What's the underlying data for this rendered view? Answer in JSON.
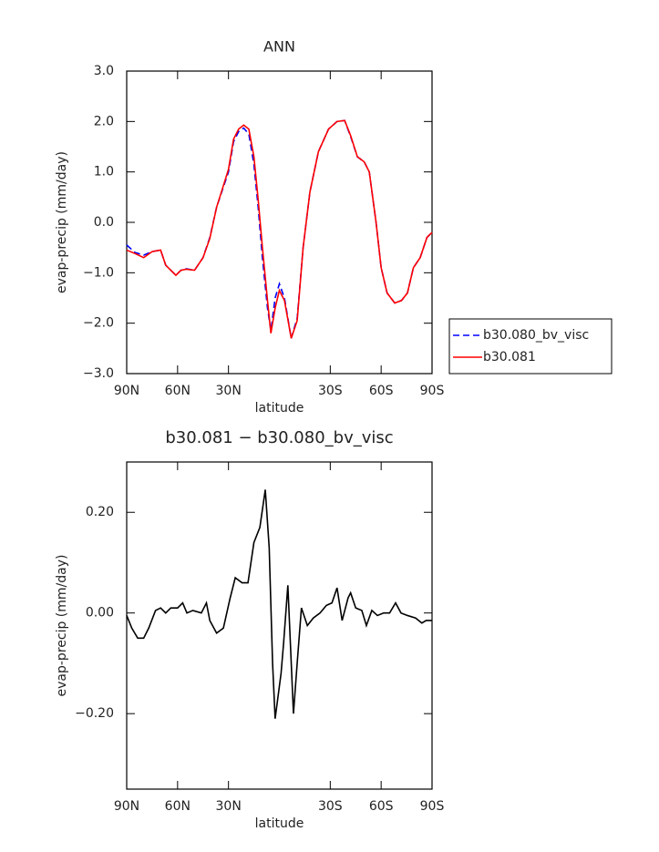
{
  "chart_data": [
    {
      "type": "line",
      "title": "ANN",
      "xlabel": "latitude",
      "ylabel": "evap-precip (mm/day)",
      "x": [
        90,
        85,
        80,
        75,
        70,
        67,
        64,
        61,
        58,
        55,
        50,
        45,
        41,
        37,
        34,
        30,
        27,
        24,
        21,
        18,
        15,
        12.5,
        10,
        7,
        5,
        2.5,
        0,
        -3,
        -7,
        -10.5,
        -14,
        -18,
        -23,
        -29,
        -34,
        -38.5,
        -42,
        -46,
        -50,
        -53,
        -57,
        -60,
        -63.5,
        -68,
        -72,
        -75.5,
        -79,
        -83,
        -87,
        -90
      ],
      "series": [
        {
          "name": "b30.080_bv_visc",
          "color": "#0000ff",
          "linestyle": "dashed",
          "values": [
            -0.45,
            -0.6,
            -0.65,
            -0.58,
            -0.55,
            -0.85,
            -0.95,
            -1.05,
            -0.95,
            -0.92,
            -0.95,
            -0.7,
            -0.3,
            0.3,
            0.6,
            1.0,
            1.6,
            1.8,
            1.87,
            1.75,
            1.15,
            0.3,
            -0.7,
            -1.7,
            -2.15,
            -1.5,
            -1.22,
            -1.5,
            -2.3,
            -1.9,
            -0.5,
            0.6,
            1.4,
            1.85,
            2.0,
            2.02,
            1.7,
            1.3,
            1.2,
            1.0,
            0.0,
            -0.9,
            -1.4,
            -1.6,
            -1.55,
            -1.4,
            -0.9,
            -0.7,
            -0.3,
            -0.2
          ]
        },
        {
          "name": "b30.081",
          "color": "#ff0000",
          "linestyle": "solid",
          "values": [
            -0.55,
            -0.62,
            -0.7,
            -0.58,
            -0.55,
            -0.85,
            -0.95,
            -1.05,
            -0.95,
            -0.93,
            -0.95,
            -0.7,
            -0.32,
            0.3,
            0.62,
            1.05,
            1.65,
            1.85,
            1.93,
            1.85,
            1.3,
            0.45,
            -0.5,
            -1.55,
            -2.2,
            -1.7,
            -1.35,
            -1.55,
            -2.3,
            -1.95,
            -0.5,
            0.6,
            1.4,
            1.85,
            2.0,
            2.02,
            1.72,
            1.3,
            1.2,
            1.0,
            0.0,
            -0.9,
            -1.4,
            -1.6,
            -1.55,
            -1.4,
            -0.9,
            -0.7,
            -0.3,
            -0.2
          ]
        }
      ],
      "xlim": [
        90,
        -90
      ],
      "xticks": [
        {
          "value": 90,
          "label": "90N"
        },
        {
          "value": 60,
          "label": "60N"
        },
        {
          "value": 30,
          "label": "30N"
        },
        {
          "value": -30,
          "label": "30S"
        },
        {
          "value": -60,
          "label": "60S"
        },
        {
          "value": -90,
          "label": "90S"
        }
      ],
      "ylim": [
        -3,
        3
      ],
      "yticks": [
        {
          "value": 3,
          "label": "3.0"
        },
        {
          "value": 2,
          "label": "2.0"
        },
        {
          "value": 1,
          "label": "1.0"
        },
        {
          "value": 0,
          "label": "0.0"
        },
        {
          "value": -1,
          "label": "−1.0"
        },
        {
          "value": -2,
          "label": "−2.0"
        },
        {
          "value": -3,
          "label": "−3.0"
        }
      ],
      "legend": "right"
    },
    {
      "type": "line",
      "title": "b30.081 − b30.080_bv_visc",
      "xlabel": "latitude",
      "ylabel": "evap-precip (mm/day)",
      "x": [
        90,
        87,
        83.5,
        80,
        77,
        73,
        70,
        67,
        64,
        60,
        57,
        54.5,
        51,
        46,
        43,
        41,
        37,
        33,
        29,
        26,
        22,
        18.5,
        15,
        11.5,
        8.3,
        6,
        4,
        2.5,
        -1,
        -2.5,
        -5,
        -8.3,
        -10.5,
        -13,
        -16.5,
        -20,
        -24,
        -27.7,
        -31,
        -34,
        -37,
        -40.5,
        -42,
        -45,
        -48.6,
        -51.3,
        -54.5,
        -57.8,
        -61.5,
        -65,
        -68.5,
        -71.7,
        -75.5,
        -80.3,
        -84,
        -86.5,
        -90
      ],
      "values": [
        -0.005,
        -0.03,
        -0.05,
        -0.05,
        -0.03,
        0.005,
        0.01,
        0.0,
        0.01,
        0.01,
        0.02,
        0.0,
        0.005,
        0.0,
        0.02,
        -0.015,
        -0.04,
        -0.03,
        0.03,
        0.07,
        0.06,
        0.06,
        0.14,
        0.17,
        0.245,
        0.13,
        -0.1,
        -0.21,
        -0.12,
        -0.06,
        0.055,
        -0.2,
        -0.1,
        0.01,
        -0.025,
        -0.01,
        0.0,
        0.015,
        0.02,
        0.05,
        -0.015,
        0.03,
        0.04,
        0.01,
        0.005,
        -0.025,
        0.005,
        -0.005,
        0.0,
        0.0,
        0.02,
        0.0,
        -0.005,
        -0.01,
        -0.02,
        -0.015,
        -0.015
      ],
      "color": "#000000",
      "xlim": [
        90,
        -90
      ],
      "xticks": [
        {
          "value": 90,
          "label": "90N"
        },
        {
          "value": 60,
          "label": "60N"
        },
        {
          "value": 30,
          "label": "30N"
        },
        {
          "value": -30,
          "label": "30S"
        },
        {
          "value": -60,
          "label": "60S"
        },
        {
          "value": -90,
          "label": "90S"
        }
      ],
      "ylim": [
        -0.35,
        0.3
      ],
      "yticks": [
        {
          "value": 0.2,
          "label": "0.20"
        },
        {
          "value": 0,
          "label": "0.00"
        },
        {
          "value": -0.2,
          "label": "−0.20"
        }
      ]
    }
  ]
}
